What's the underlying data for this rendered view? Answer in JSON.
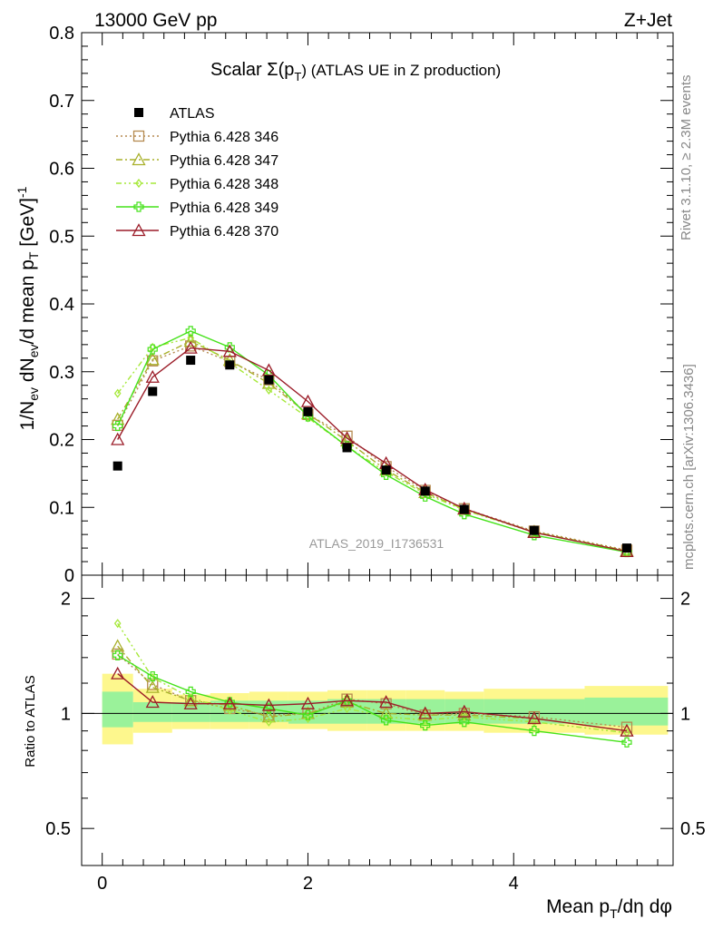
{
  "header": {
    "left": "13000 GeV pp",
    "right": "Z+Jet"
  },
  "side_labels": {
    "rivet": "Rivet 3.1.10, ≥ 2.3M events",
    "mcplots": "mcplots.cern.ch [arXiv:1306.3436]"
  },
  "chart_data": {
    "type": "line",
    "title_main": "Scalar Σ(p",
    "title_sub": "T",
    "title_rest": ") (ATLAS UE in Z production)",
    "watermark": "ATLAS_2019_I1736531",
    "ylabel": "1/N_ev dN_ev/d mean p_T [GeV]^-1",
    "ratio_ylabel": "Ratio to ATLAS",
    "xlabel": "Mean p_T/dη dφ",
    "xlim": [
      -0.2,
      5.55
    ],
    "ylim": [
      0,
      0.8
    ],
    "ratio_ylim": [
      0.4,
      2.3
    ],
    "main_yticks": [
      "0",
      "0.1",
      "0.2",
      "0.3",
      "0.4",
      "0.5",
      "0.6",
      "0.7",
      "0.8"
    ],
    "ratio_yticks": [
      "0.5",
      "1",
      "2"
    ],
    "xticks": [
      "0",
      "2",
      "4"
    ],
    "x": [
      0.15,
      0.49,
      0.86,
      1.24,
      1.62,
      2.0,
      2.38,
      2.76,
      3.14,
      3.52,
      4.2,
      5.1
    ],
    "bin_edges": [
      0.0,
      0.3,
      0.68,
      1.05,
      1.43,
      1.81,
      2.19,
      2.57,
      2.95,
      3.33,
      3.71,
      4.69,
      5.5
    ],
    "ratio_band_yellow": [
      [
        0.83,
        1.27
      ],
      [
        0.89,
        1.16
      ],
      [
        0.91,
        1.12
      ],
      [
        0.91,
        1.13
      ],
      [
        0.91,
        1.14
      ],
      [
        0.91,
        1.14
      ],
      [
        0.9,
        1.15
      ],
      [
        0.9,
        1.15
      ],
      [
        0.9,
        1.15
      ],
      [
        0.9,
        1.14
      ],
      [
        0.89,
        1.16
      ],
      [
        0.88,
        1.18
      ]
    ],
    "ratio_band_green": [
      [
        0.92,
        1.14
      ],
      [
        0.95,
        1.07
      ],
      [
        0.95,
        1.07
      ],
      [
        0.95,
        1.08
      ],
      [
        0.95,
        1.08
      ],
      [
        0.94,
        1.08
      ],
      [
        0.94,
        1.09
      ],
      [
        0.94,
        1.09
      ],
      [
        0.94,
        1.09
      ],
      [
        0.94,
        1.09
      ],
      [
        0.94,
        1.09
      ],
      [
        0.93,
        1.1
      ]
    ],
    "data": {
      "name": "ATLAS",
      "color": "#000000",
      "values": [
        0.161,
        0.271,
        0.317,
        0.31,
        0.288,
        0.241,
        0.188,
        0.155,
        0.124,
        0.097,
        0.066,
        0.04
      ]
    },
    "series": [
      {
        "name": "Pythia 6.428 346",
        "color": "#b58a50",
        "dash": "2,3",
        "marker": "square",
        "values": [
          0.221,
          0.316,
          0.338,
          0.315,
          0.288,
          0.237,
          0.205,
          0.16,
          0.125,
          0.098,
          0.065,
          0.037
        ],
        "ratio": [
          1.43,
          1.19,
          1.08,
          1.03,
          0.99,
          1.0,
          1.09,
          1.06,
          0.99,
          1.0,
          0.98,
          0.92
        ]
      },
      {
        "name": "Pythia 6.428 347",
        "color": "#a8b02a",
        "dash": "7,3,2,3",
        "marker": "triangle",
        "values": [
          0.23,
          0.318,
          0.345,
          0.317,
          0.283,
          0.238,
          0.198,
          0.155,
          0.122,
          0.097,
          0.064,
          0.036
        ],
        "ratio": [
          1.5,
          1.17,
          1.08,
          1.05,
          0.98,
          1.0,
          1.07,
          1.0,
          0.99,
          0.99,
          0.97,
          0.9
        ]
      },
      {
        "name": "Pythia 6.428 348",
        "color": "#a6e83a",
        "dash": "6,3,2,3,2,3",
        "marker": "diamond",
        "values": [
          0.268,
          0.336,
          0.35,
          0.313,
          0.273,
          0.232,
          0.19,
          0.152,
          0.12,
          0.096,
          0.063,
          0.035
        ],
        "ratio": [
          1.72,
          1.24,
          1.1,
          1.02,
          0.95,
          0.97,
          1.03,
          0.98,
          0.96,
          0.98,
          0.95,
          0.89
        ]
      },
      {
        "name": "Pythia 6.428 349",
        "color": "#45e21a",
        "dash": "",
        "marker": "cross",
        "values": [
          0.22,
          0.333,
          0.36,
          0.336,
          0.295,
          0.234,
          0.19,
          0.148,
          0.116,
          0.09,
          0.059,
          0.034
        ],
        "ratio": [
          1.42,
          1.25,
          1.14,
          1.07,
          1.03,
          0.99,
          1.08,
          0.96,
          0.93,
          0.95,
          0.9,
          0.84
        ]
      },
      {
        "name": "Pythia 6.428 370",
        "color": "#9b1c28",
        "dash": "",
        "marker": "triangle",
        "values": [
          0.2,
          0.292,
          0.335,
          0.33,
          0.302,
          0.256,
          0.202,
          0.165,
          0.126,
          0.098,
          0.063,
          0.035
        ],
        "ratio": [
          1.27,
          1.07,
          1.06,
          1.06,
          1.05,
          1.06,
          1.08,
          1.07,
          1.0,
          1.01,
          0.97,
          0.9
        ]
      }
    ]
  }
}
